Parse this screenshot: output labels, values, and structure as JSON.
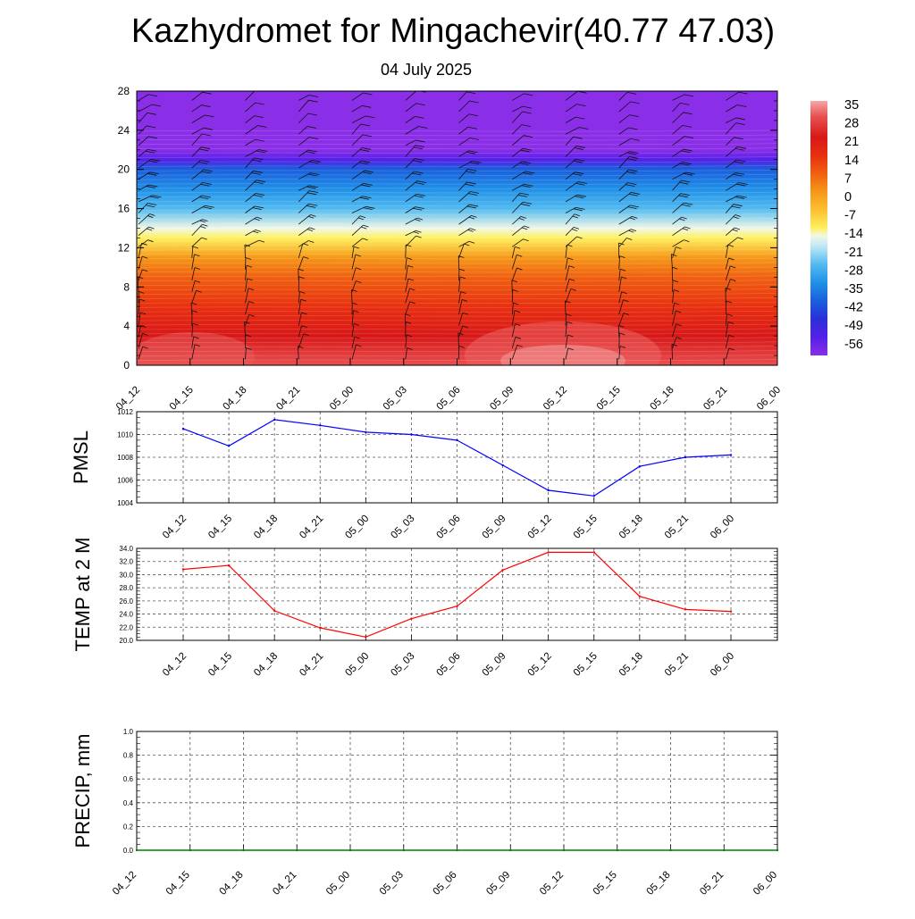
{
  "header": {
    "title": "Kazhydromet for Mingachevir(40.77 47.03)",
    "subtitle": "04 July 2025"
  },
  "colorbar": {
    "labels": [
      "35",
      "28",
      "21",
      "14",
      "7",
      "0",
      "-7",
      "-14",
      "-21",
      "-28",
      "-35",
      "-42",
      "-49",
      "-56"
    ],
    "stops": [
      {
        "v": 38,
        "color": "#f4a8a8"
      },
      {
        "v": 32,
        "color": "#e85050"
      },
      {
        "v": 24,
        "color": "#d81818"
      },
      {
        "v": 17,
        "color": "#e83010"
      },
      {
        "v": 10,
        "color": "#f06010"
      },
      {
        "v": 3,
        "color": "#f59818"
      },
      {
        "v": -4,
        "color": "#fcc030"
      },
      {
        "v": -11,
        "color": "#fff060"
      },
      {
        "v": -14,
        "color": "#f0f8e8"
      },
      {
        "v": -18,
        "color": "#bfe6f6"
      },
      {
        "v": -25,
        "color": "#52baf0"
      },
      {
        "v": -32,
        "color": "#2090e8"
      },
      {
        "v": -39,
        "color": "#1a5fdc"
      },
      {
        "v": -46,
        "color": "#2a30d8"
      },
      {
        "v": -53,
        "color": "#5520e8"
      },
      {
        "v": -60,
        "color": "#8a2ee8"
      }
    ]
  },
  "chart_data": [
    {
      "id": "crossSection",
      "type": "heatmap",
      "ylim": [
        0,
        28
      ],
      "yticks": [
        "0",
        "4",
        "8",
        "12",
        "16",
        "20",
        "24",
        "28"
      ],
      "categories": [
        "04_12",
        "04_15",
        "04_18",
        "04_21",
        "05_00",
        "05_03",
        "05_06",
        "05_09",
        "05_12",
        "05_15",
        "05_18",
        "05_21",
        "06_00"
      ],
      "temperature_profile": [
        {
          "z": 0,
          "t": 30
        },
        {
          "z": 3,
          "t": 23
        },
        {
          "z": 6,
          "t": 20
        },
        {
          "z": 9,
          "t": 13
        },
        {
          "z": 11,
          "t": 6
        },
        {
          "z": 13,
          "t": -9
        },
        {
          "z": 14,
          "t": -15
        },
        {
          "z": 16,
          "t": -22
        },
        {
          "z": 18,
          "t": -32
        },
        {
          "z": 20,
          "t": -42
        },
        {
          "z": 21,
          "t": -52
        },
        {
          "z": 22,
          "t": -60
        },
        {
          "z": 28,
          "t": -60
        }
      ]
    },
    {
      "id": "pmsl",
      "type": "line",
      "ylabel": "PMSL",
      "ylim": [
        1004,
        1012
      ],
      "yticks": [
        "1004",
        "1006",
        "1008",
        "1010",
        "1012"
      ],
      "categories": [
        "04_12",
        "04_15",
        "04_18",
        "04_21",
        "05_00",
        "05_03",
        "05_06",
        "05_09",
        "05_12",
        "05_15",
        "05_18",
        "05_21",
        "06_00"
      ],
      "values": [
        1010.5,
        1009.0,
        1011.3,
        1010.8,
        1010.2,
        1010.0,
        1009.5,
        1007.3,
        1005.1,
        1004.6,
        1007.2,
        1008.0,
        1008.2
      ],
      "color": "#0000ff"
    },
    {
      "id": "temp",
      "type": "line",
      "ylabel": "TEMP at 2 M",
      "ylim": [
        20,
        34
      ],
      "yticks": [
        "20.0",
        "22.0",
        "24.0",
        "26.0",
        "28.0",
        "30.0",
        "32.0",
        "34.0"
      ],
      "categories": [
        "04_12",
        "04_15",
        "04_18",
        "04_21",
        "05_00",
        "05_03",
        "05_06",
        "05_09",
        "05_12",
        "05_15",
        "05_18",
        "05_21",
        "06_00"
      ],
      "values": [
        30.8,
        31.4,
        24.5,
        21.9,
        20.5,
        23.3,
        25.2,
        30.7,
        33.4,
        33.4,
        26.7,
        24.7,
        24.4
      ],
      "color": "#ff0000"
    },
    {
      "id": "precip",
      "type": "line",
      "ylabel": "PRECIP, mm",
      "ylim": [
        0,
        1
      ],
      "yticks": [
        "0.0",
        "0.2",
        "0.4",
        "0.6",
        "0.8",
        "1.0"
      ],
      "categories": [
        "04_12",
        "04_15",
        "04_18",
        "04_21",
        "05_00",
        "05_03",
        "05_06",
        "05_09",
        "05_12",
        "05_15",
        "05_18",
        "05_21",
        "06_00"
      ],
      "values": [
        0,
        0,
        0,
        0,
        0,
        0,
        0,
        0,
        0,
        0,
        0,
        0,
        0
      ],
      "color": "#008000"
    }
  ]
}
